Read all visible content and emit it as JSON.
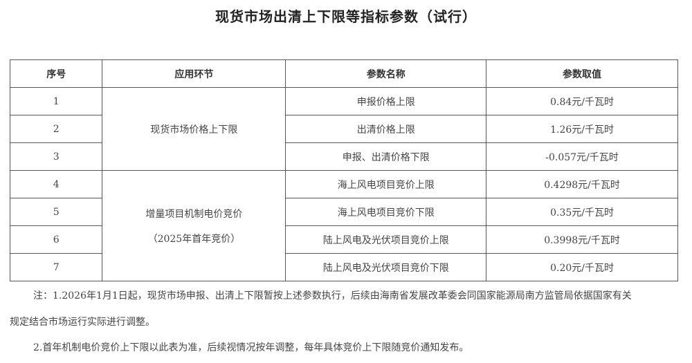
{
  "title": "现货市场出清上下限等指标参数（试行）",
  "table": {
    "headers": [
      "序号",
      "应用环节",
      "参数名称",
      "参数取值"
    ],
    "groups": [
      {
        "stage": "现货市场价格上下限",
        "stage_sub": ""
      },
      {
        "stage": "增量项目机制电价竞价",
        "stage_sub": "（2025年首年竞价）"
      }
    ],
    "rows": [
      {
        "no": "1",
        "name": "申报价格上限",
        "value": "0.84元/千瓦时"
      },
      {
        "no": "2",
        "name": "出清价格上限",
        "value": "1.26元/千瓦时"
      },
      {
        "no": "3",
        "name": "申报、出清价格下限",
        "value": "-0.057元/千瓦时"
      },
      {
        "no": "4",
        "name": "海上风电项目竞价上限",
        "value": "0.4298元/千瓦时"
      },
      {
        "no": "5",
        "name": "海上风电项目竞价下限",
        "value": "0.35元/千瓦时"
      },
      {
        "no": "6",
        "name": "陆上风电及光伏项目竞价上限",
        "value": "0.3998元/千瓦时"
      },
      {
        "no": "7",
        "name": "陆上风电及光伏项目竞价下限",
        "value": "0.20元/千瓦时"
      }
    ]
  },
  "notes": {
    "line1": "注：1.2026年1月1日起，现货市场申报、出清上下限暂按上述参数执行，后续由海南省发展改革委会同国家能源局南方监管局依据国家有关",
    "line2": "规定结合市场运行实际进行调整。",
    "line3": "2.首年机制电价竞价上下限以此表为准，后续视情况按年调整，每年具体竞价上下限随竞价通知发布。"
  }
}
